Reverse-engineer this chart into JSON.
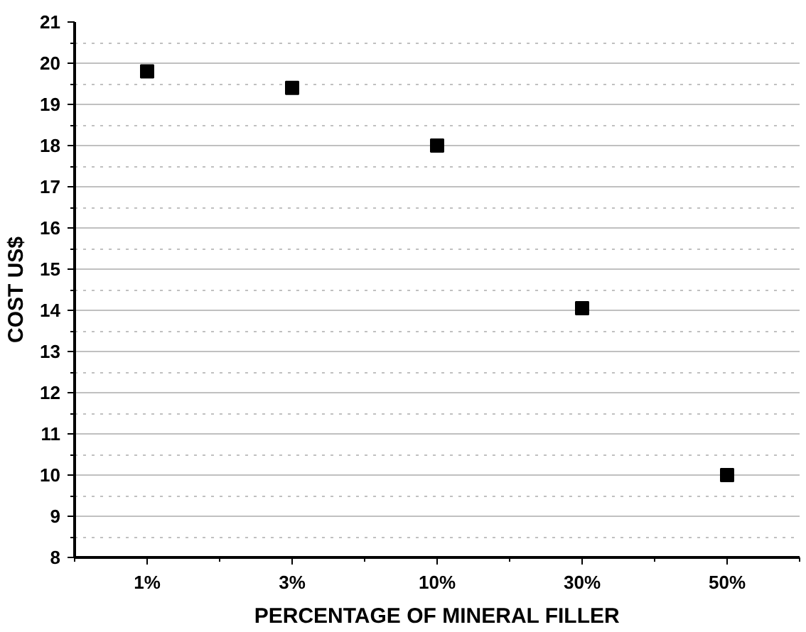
{
  "chart_data": {
    "type": "scatter",
    "xlabel": "PERCENTAGE OF MINERAL FILLER",
    "ylabel": "COST US$",
    "categories": [
      "1%",
      "3%",
      "10%",
      "30%",
      "50%"
    ],
    "series": [
      {
        "color": "#000000",
        "values": [
          19.8,
          19.4,
          18.0,
          14.05,
          10.0
        ]
      }
    ],
    "ylim": [
      8,
      21
    ],
    "yticks": [
      8,
      9,
      10,
      11,
      12,
      13,
      14,
      15,
      16,
      17,
      18,
      19,
      20,
      21
    ],
    "grid": true,
    "marker": "square"
  }
}
